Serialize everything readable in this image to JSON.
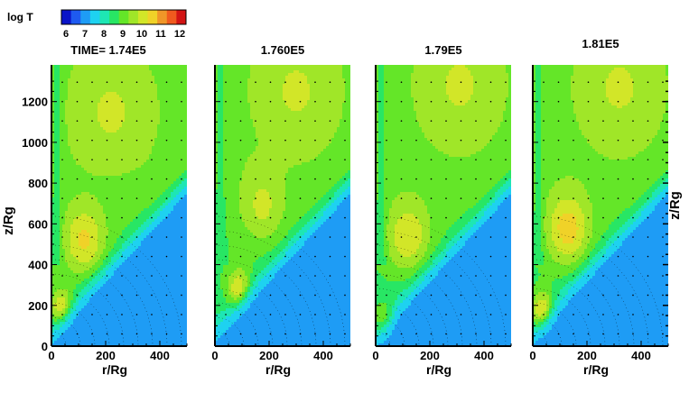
{
  "chart_data": {
    "type": "heatmap",
    "colorbar": {
      "label": "log T",
      "ticks": [
        "6",
        "7",
        "8",
        "9",
        "10",
        "11",
        "12"
      ],
      "colors": [
        "#0a14c8",
        "#1e5af0",
        "#1e9cf5",
        "#1ed2f0",
        "#1ee6b4",
        "#28e664",
        "#64e628",
        "#a0e628",
        "#d2e628",
        "#f0d228",
        "#f09628",
        "#f05a1e",
        "#d21414"
      ]
    },
    "xlabel": "r/Rg",
    "ylabel": "z/Rg",
    "x_ticks": [
      "0",
      "200",
      "400"
    ],
    "y_ticks": [
      "0",
      "200",
      "400",
      "600",
      "800",
      "1000",
      "1200"
    ],
    "xlim": [
      0,
      500
    ],
    "ylim": [
      0,
      1380
    ],
    "panels": [
      {
        "title": "TIME= 1.74E5",
        "time": 174000,
        "hot_blob": {
          "r": 120,
          "z": 510,
          "logT": 10.6
        },
        "base_blob": {
          "r": 40,
          "z": 170,
          "logT": 11.3
        },
        "upper_plateau": {
          "r": 220,
          "z": 1150,
          "logT": 9.4
        }
      },
      {
        "title": "1.760E5",
        "time": 176000,
        "hot_blob": {
          "r": 175,
          "z": 680,
          "logT": 9.8
        },
        "base_blob": {
          "r": 90,
          "z": 270,
          "logT": 11.0
        },
        "upper_plateau": {
          "r": 300,
          "z": 1250,
          "logT": 9.4
        }
      },
      {
        "title": "1.79E5",
        "time": 179000,
        "hot_blob": {
          "r": 120,
          "z": 530,
          "logT": 10.4
        },
        "base_blob": {
          "r": 40,
          "z": 80,
          "logT": 11.6
        },
        "upper_plateau": {
          "r": 310,
          "z": 1280,
          "logT": 9.4
        }
      },
      {
        "title": "1.81E5",
        "time": 181000,
        "hot_blob": {
          "r": 130,
          "z": 570,
          "logT": 10.8
        },
        "base_blob": {
          "r": 40,
          "z": 150,
          "logT": 11.8
        },
        "upper_plateau": {
          "r": 320,
          "z": 1270,
          "logT": 9.4
        }
      }
    ]
  }
}
